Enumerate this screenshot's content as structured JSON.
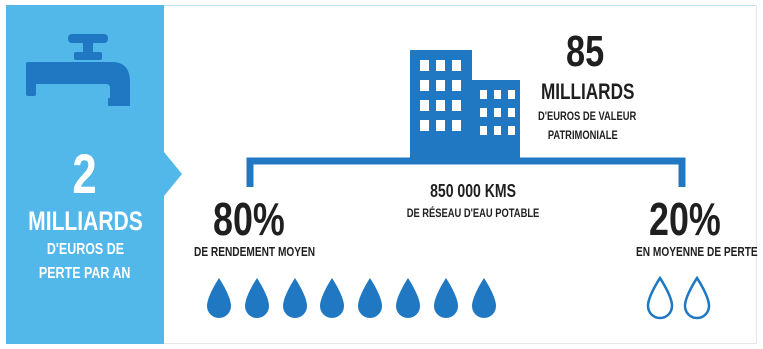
{
  "loss_panel": {
    "amount": "2",
    "unit": "MILLIARDS",
    "line1": "D'EUROS DE",
    "line2": "PERTE PAR AN",
    "icon": "water-tap-icon",
    "color": "#52b8ea"
  },
  "asset_value": {
    "amount": "85",
    "unit": "MILLIARDS",
    "line1": "D'EUROS DE VALEUR",
    "line2": "PATRIMONIALE",
    "icon": "buildings-icon",
    "color": "#1f78c1"
  },
  "network": {
    "length": "850 000 KMS",
    "label": "DE RÉSEAU D'EAU POTABLE"
  },
  "yield": {
    "percent": "80%",
    "label": "DE RENDEMENT MOYEN",
    "filled_drops": 8,
    "drop_icon": "filled-water-drop-icon"
  },
  "loss": {
    "percent": "20%",
    "label": "EN MOYENNE DE PERTE",
    "outline_drops": 2,
    "drop_icon": "outline-water-drop-icon"
  },
  "colors": {
    "accent_light": "#52b8ea",
    "accent_dark": "#1f78c1",
    "text": "#1f1f1f"
  }
}
